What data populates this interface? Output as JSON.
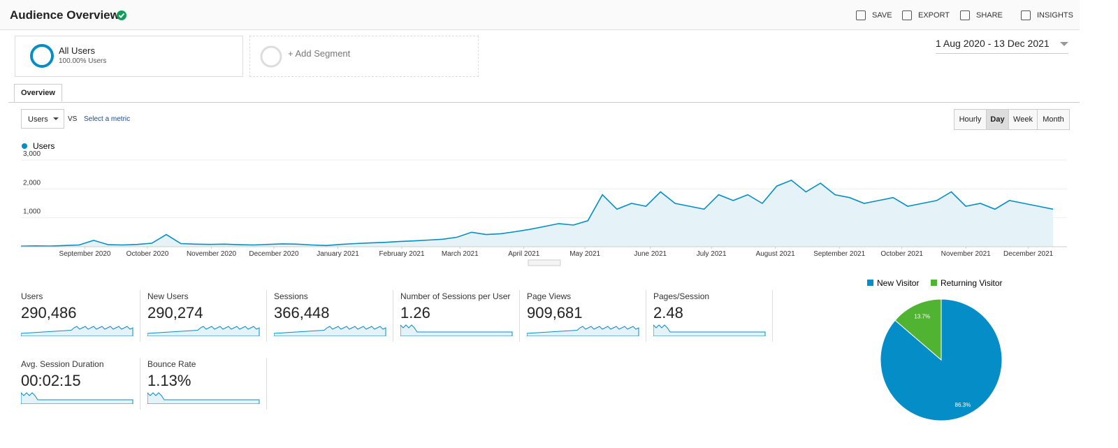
{
  "header": {
    "title": "Audience Overview",
    "actions": [
      "SAVE",
      "EXPORT",
      "SHARE",
      "INSIGHTS"
    ]
  },
  "segments": [
    {
      "name": "All Users",
      "detail": "100.00% Users"
    },
    {
      "name": "+ Add Segment"
    }
  ],
  "date_range": "1 Aug 2020 - 13 Dec 2021",
  "tab": "Overview",
  "metric_select": "Users",
  "vs": "VS",
  "select_metric": "Select a metric",
  "granularity": [
    "Hourly",
    "Day",
    "Week",
    "Month"
  ],
  "chart_data": [
    {
      "type": "line",
      "series": [
        {
          "name": "Users",
          "color": "#058dc7",
          "values": [
            20,
            30,
            25,
            40,
            60,
            220,
            70,
            60,
            80,
            120,
            420,
            110,
            90,
            80,
            90,
            70,
            60,
            80,
            100,
            90,
            60,
            40,
            80,
            110,
            130,
            150,
            180,
            200,
            230,
            260,
            330,
            500,
            420,
            450,
            520,
            600,
            700,
            800,
            750,
            900,
            1800,
            1300,
            1500,
            1400,
            1900,
            1500,
            1400,
            1300,
            1800,
            1600,
            1800,
            1500,
            2100,
            2300,
            1900,
            2200,
            1800,
            1700,
            1500,
            1600,
            1700,
            1400,
            1500,
            1600,
            1900,
            1400,
            1500,
            1300,
            1600,
            1500,
            1400,
            1300
          ]
        }
      ],
      "xlim": [
        0,
        71
      ],
      "xticks": [
        {
          "value": 4.4,
          "label": "September 2020"
        },
        {
          "value": 8.7,
          "label": "October 2020"
        },
        {
          "value": 13.1,
          "label": "November 2020"
        },
        {
          "value": 17.4,
          "label": "December 2020"
        },
        {
          "value": 21.8,
          "label": "January 2021"
        },
        {
          "value": 26.2,
          "label": "February 2021"
        },
        {
          "value": 30.2,
          "label": "March 2021"
        },
        {
          "value": 34.6,
          "label": "April 2021"
        },
        {
          "value": 38.8,
          "label": "May 2021"
        },
        {
          "value": 43.3,
          "label": "June 2021"
        },
        {
          "value": 47.5,
          "label": "July 2021"
        },
        {
          "value": 51.9,
          "label": "August 2021"
        },
        {
          "value": 56.3,
          "label": "September 2021"
        },
        {
          "value": 60.6,
          "label": "October 2021"
        },
        {
          "value": 65.0,
          "label": "November 2021"
        },
        {
          "value": 69.3,
          "label": "December 2021"
        }
      ],
      "ylim": [
        0,
        3000
      ],
      "yticks": [
        {
          "value": 1000,
          "label": "1,000"
        },
        {
          "value": 2000,
          "label": "2,000"
        },
        {
          "value": 3000,
          "label": "3,000"
        }
      ],
      "grid": true
    },
    {
      "type": "pie",
      "categories": [
        "New Visitor",
        "Returning Visitor"
      ],
      "values": [
        86.3,
        13.7
      ],
      "value_labels": [
        "86.3%",
        "13.7%"
      ],
      "colors": [
        "#058dc7",
        "#50b432"
      ]
    }
  ],
  "metrics": [
    {
      "label": "Users",
      "value": "290,486"
    },
    {
      "label": "New Users",
      "value": "290,274"
    },
    {
      "label": "Sessions",
      "value": "366,448"
    },
    {
      "label": "Number of Sessions per User",
      "value": "1.26"
    },
    {
      "label": "Page Views",
      "value": "909,681"
    },
    {
      "label": "Pages/Session",
      "value": "2.48"
    },
    {
      "label": "Avg. Session Duration",
      "value": "00:02:15"
    },
    {
      "label": "Bounce Rate",
      "value": "1.13%"
    }
  ]
}
